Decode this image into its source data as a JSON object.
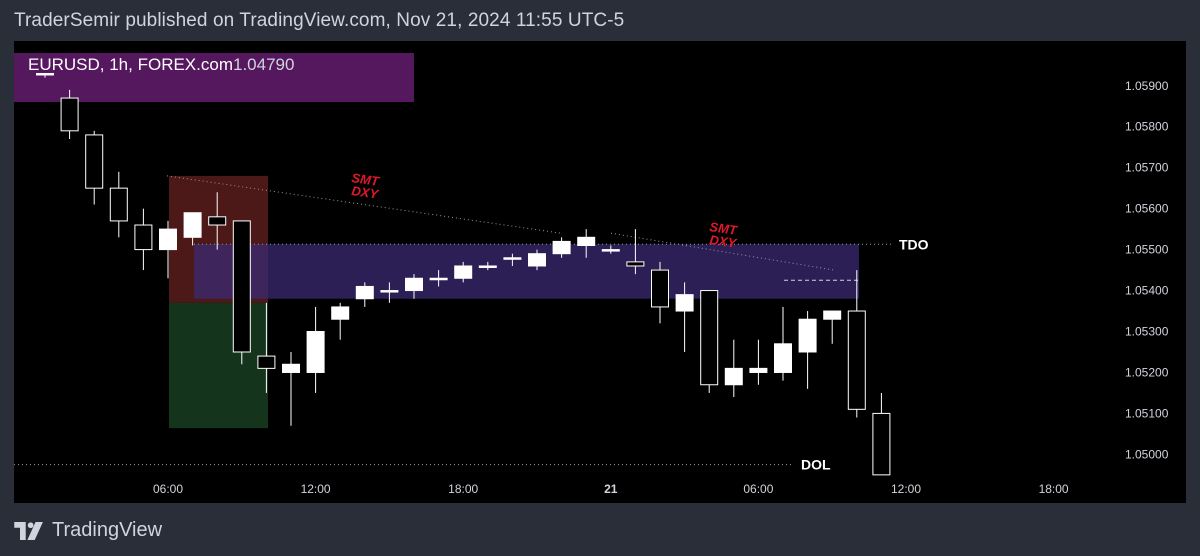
{
  "header": {
    "published_text": "TraderSemir published on TradingView.com, Nov 21, 2024 11:55 UTC-5"
  },
  "footer": {
    "brand": "TradingView",
    "logo_icon": "tradingview-logo-icon"
  },
  "chart_data": {
    "type": "candlestick",
    "symbol_label": "EURUSD, 1h, FOREX.com",
    "last_price": "1.04790",
    "y_ticks": [
      "1.05900",
      "1.05800",
      "1.05700",
      "1.05600",
      "1.05500",
      "1.05400",
      "1.05300",
      "1.05200",
      "1.05100",
      "1.05000"
    ],
    "x_ticks": [
      {
        "bar": 5,
        "label": "06:00"
      },
      {
        "bar": 11,
        "label": "12:00"
      },
      {
        "bar": 17,
        "label": "18:00"
      },
      {
        "bar": 23,
        "label": "21"
      },
      {
        "bar": 29,
        "label": "06:00"
      },
      {
        "bar": 35,
        "label": "12:00"
      },
      {
        "bar": 41,
        "label": "18:00"
      }
    ],
    "ylim": [
      1.04935,
      1.0598
    ],
    "candles": [
      {
        "o": 1.0593,
        "h": 1.0593,
        "l": 1.0592,
        "c": 1.0593
      },
      {
        "o": 1.0587,
        "h": 1.0589,
        "l": 1.0577,
        "c": 1.0579
      },
      {
        "o": 1.0578,
        "h": 1.0579,
        "l": 1.0561,
        "c": 1.0565
      },
      {
        "o": 1.0565,
        "h": 1.0569,
        "l": 1.0553,
        "c": 1.0557
      },
      {
        "o": 1.0556,
        "h": 1.056,
        "l": 1.0545,
        "c": 1.055
      },
      {
        "o": 1.055,
        "h": 1.0557,
        "l": 1.0543,
        "c": 1.0555
      },
      {
        "o": 1.0553,
        "h": 1.0559,
        "l": 1.0551,
        "c": 1.0559
      },
      {
        "o": 1.0558,
        "h": 1.0564,
        "l": 1.055,
        "c": 1.0556
      },
      {
        "o": 1.0557,
        "h": 1.0557,
        "l": 1.0522,
        "c": 1.0525
      },
      {
        "o": 1.0524,
        "h": 1.0537,
        "l": 1.0515,
        "c": 1.0521
      },
      {
        "o": 1.052,
        "h": 1.0525,
        "l": 1.0507,
        "c": 1.0522
      },
      {
        "o": 1.052,
        "h": 1.0536,
        "l": 1.0515,
        "c": 1.053
      },
      {
        "o": 1.0533,
        "h": 1.0537,
        "l": 1.0528,
        "c": 1.0536
      },
      {
        "o": 1.0538,
        "h": 1.0542,
        "l": 1.0536,
        "c": 1.0541
      },
      {
        "o": 1.054,
        "h": 1.0542,
        "l": 1.0537,
        "c": 1.054
      },
      {
        "o": 1.054,
        "h": 1.0544,
        "l": 1.0538,
        "c": 1.0543
      },
      {
        "o": 1.0543,
        "h": 1.0545,
        "l": 1.0541,
        "c": 1.0543
      },
      {
        "o": 1.0543,
        "h": 1.0547,
        "l": 1.0542,
        "c": 1.0546
      },
      {
        "o": 1.0546,
        "h": 1.0547,
        "l": 1.0545,
        "c": 1.0546
      },
      {
        "o": 1.0548,
        "h": 1.0549,
        "l": 1.0546,
        "c": 1.0548
      },
      {
        "o": 1.0546,
        "h": 1.055,
        "l": 1.0545,
        "c": 1.0549
      },
      {
        "o": 1.0549,
        "h": 1.0553,
        "l": 1.0548,
        "c": 1.0552
      },
      {
        "o": 1.0551,
        "h": 1.0555,
        "l": 1.0548,
        "c": 1.0553
      },
      {
        "o": 1.055,
        "h": 1.0551,
        "l": 1.0549,
        "c": 1.055
      },
      {
        "o": 1.0547,
        "h": 1.0555,
        "l": 1.0544,
        "c": 1.0546
      },
      {
        "o": 1.0545,
        "h": 1.0547,
        "l": 1.0532,
        "c": 1.0536
      },
      {
        "o": 1.0535,
        "h": 1.0542,
        "l": 1.0525,
        "c": 1.0539
      },
      {
        "o": 1.054,
        "h": 1.054,
        "l": 1.0515,
        "c": 1.0517
      },
      {
        "o": 1.0517,
        "h": 1.0528,
        "l": 1.0514,
        "c": 1.0521
      },
      {
        "o": 1.052,
        "h": 1.0528,
        "l": 1.0517,
        "c": 1.0521
      },
      {
        "o": 1.052,
        "h": 1.0536,
        "l": 1.0518,
        "c": 1.0527
      },
      {
        "o": 1.0525,
        "h": 1.0535,
        "l": 1.0516,
        "c": 1.0533
      },
      {
        "o": 1.0533,
        "h": 1.0535,
        "l": 1.0527,
        "c": 1.0535
      },
      {
        "o": 1.0535,
        "h": 1.0545,
        "l": 1.0509,
        "c": 1.0511
      },
      {
        "o": 1.051,
        "h": 1.0515,
        "l": 1.0495,
        "c": 1.0495
      }
    ],
    "annotations": {
      "smt_1": {
        "line1": "SMT",
        "line2": "DXY"
      },
      "smt_2": {
        "line1": "SMT",
        "line2": "DXY"
      },
      "tdo": {
        "label": "TDO",
        "price": 1.05513
      },
      "dol": {
        "label": "DOL",
        "price": 1.04975
      }
    },
    "colors": {
      "bull_body": "#ffffff",
      "bear_body": "#000000",
      "wick": "#ffffff",
      "fvg_zone": "#3a2a72",
      "label_zone": "#5e1a68",
      "risk_zone": "#5a1c1c",
      "reward_zone": "#173a1f",
      "smt_text": "#e0192a"
    }
  }
}
